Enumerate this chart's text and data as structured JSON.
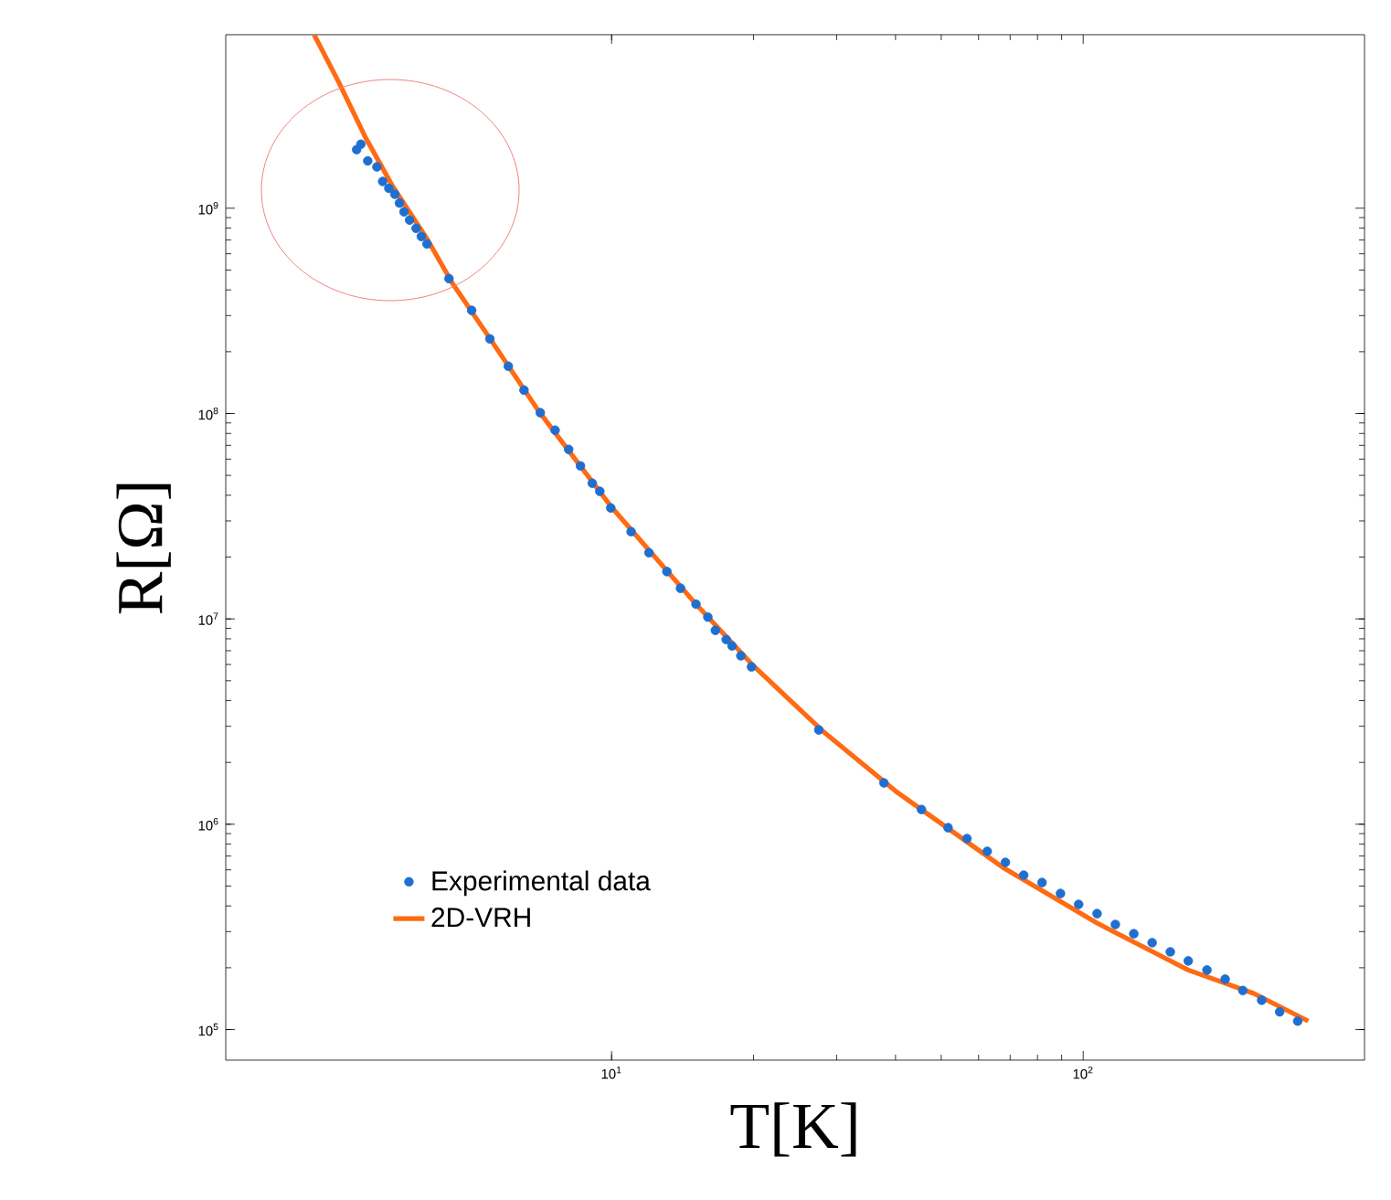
{
  "chart_data": {
    "type": "scatter",
    "xlabel": "T[K]",
    "ylabel": "R[Ω]",
    "log": "xy",
    "xlim": [
      1.52,
      395
    ],
    "ylim": [
      71000,
      7000000000
    ],
    "xticks": [
      {
        "value": 10,
        "label": "10$^{1}$"
      },
      {
        "value": 100,
        "label": "10$^{2}$"
      }
    ],
    "yticks": [
      {
        "value": 100000,
        "label": "10$^{5}$"
      },
      {
        "value": 1000000,
        "label": "10$^{6}$"
      },
      {
        "value": 10000000,
        "label": "10$^{7}$"
      },
      {
        "value": 100000000,
        "label": "10$^{8}$"
      },
      {
        "value": 1000000000,
        "label": "10$^{9}$"
      }
    ],
    "legend": "bottom left",
    "grid": false,
    "series": [
      {
        "name": "Experimental data",
        "marker": "circle",
        "color": "#1f6fd0",
        "x": [
          2.88,
          2.94,
          3.04,
          3.18,
          3.27,
          3.37,
          3.47,
          3.55,
          3.63,
          3.73,
          3.85,
          3.95,
          4.06,
          4.52,
          5.05,
          5.52,
          6.04,
          6.52,
          7.06,
          7.59,
          8.11,
          8.59,
          9.1,
          9.44,
          9.96,
          11.0,
          12.0,
          13.1,
          14.0,
          15.1,
          16.0,
          16.6,
          17.5,
          18.0,
          18.8,
          19.8,
          27.5,
          37.8,
          45.4,
          51.7,
          56.7,
          62.6,
          68.4,
          74.8,
          81.8,
          89.5,
          97.8,
          107,
          117,
          128,
          140,
          153,
          167,
          183,
          200,
          218,
          239,
          261,
          285
        ],
        "values": [
          1930000000.0,
          2050000000.0,
          1700000000.0,
          1590000000.0,
          1350000000.0,
          1250000000.0,
          1170000000.0,
          1060000000.0,
          960000000.0,
          875000000.0,
          798000000.0,
          728000000.0,
          670000000.0,
          454000000.0,
          318000000.0,
          231000000.0,
          170000000.0,
          130000000.0,
          101000000.0,
          83000000.0,
          66900000.0,
          55600000.0,
          45800000.0,
          41800000.0,
          34700000.0,
          26600000.0,
          21000000.0,
          17000000.0,
          14100000.0,
          11800000.0,
          10200000.0,
          8800000.0,
          7940000.0,
          7390000.0,
          6610000.0,
          5840000.0,
          2880000.0,
          1590000.0,
          1180000.0,
          962000.0,
          851000.0,
          738000.0,
          652000.0,
          565000.0,
          520000.0,
          460000.0,
          407000.0,
          367000.0,
          325000.0,
          293000.0,
          265000.0,
          239000.0,
          216000.0,
          195000.0,
          176000.0,
          155000.0,
          139000.0,
          122000.0,
          110000.0
        ]
      },
      {
        "name": "2D-VRH",
        "type": "line",
        "marker": "none",
        "line_style": "solid",
        "color": "#ff6a13",
        "x": [
          2.34,
          2.64,
          3.01,
          3.44,
          4.06,
          4.6,
          5.5,
          7,
          10,
          15,
          20,
          28,
          40,
          68,
          107,
          167,
          230,
          300
        ],
        "values": [
          7000000000.0,
          4100000000.0,
          2200000000.0,
          1270000000.0,
          710000000.0,
          430000000.0,
          235000000.0,
          103000000.0,
          35000000.0,
          12000000.0,
          5900000.0,
          2850000.0,
          1450000.0,
          610000.0,
          330000.0,
          195000.0,
          150000.0,
          110000.0
        ]
      }
    ]
  }
}
